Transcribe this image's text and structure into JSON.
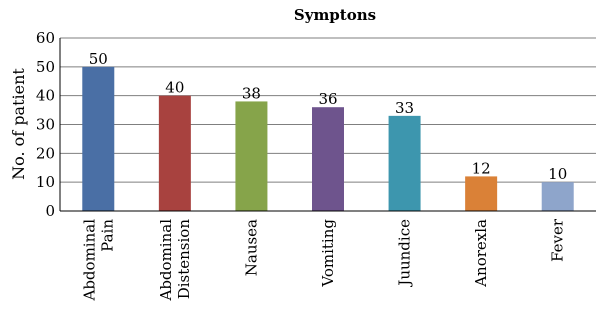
{
  "chart_data": {
    "type": "bar",
    "title": "Symptons",
    "xlabel": "",
    "ylabel": "No. of patient",
    "ylim": [
      0,
      60
    ],
    "yticks": [
      0,
      10,
      20,
      30,
      40,
      50,
      60
    ],
    "grid": true,
    "legend": "none",
    "categories": [
      [
        "Abdominal",
        "Pain"
      ],
      [
        "Abdominal",
        "Distension"
      ],
      [
        "Nausea"
      ],
      [
        "Vomiting"
      ],
      [
        "Juundice"
      ],
      [
        "Anorexla"
      ],
      [
        "Fever"
      ]
    ],
    "values": [
      50,
      40,
      38,
      36,
      33,
      12,
      10
    ],
    "data_labels": [
      "50",
      "40",
      "38",
      "36",
      "33",
      "12",
      "10"
    ],
    "colors": [
      "#4a6fa5",
      "#a8423f",
      "#86a44a",
      "#6e548d",
      "#3d96ae",
      "#da8137",
      "#8ea5cb"
    ]
  }
}
